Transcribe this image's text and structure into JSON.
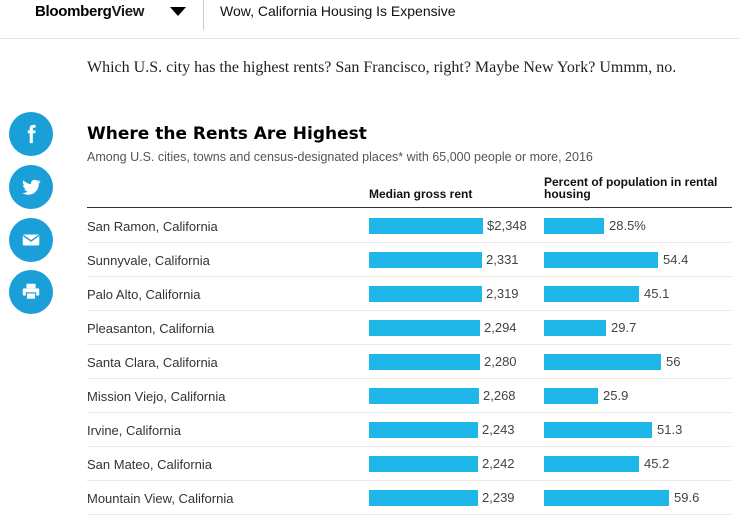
{
  "header": {
    "brand_bloomberg": "Bloomberg",
    "brand_view": "View",
    "headline": "Wow, California Housing Is Expensive"
  },
  "intro": "Which U.S. city has the highest rents? San Francisco, right? Maybe New York? Ummm, no.",
  "share_icons": [
    "facebook-icon",
    "twitter-icon",
    "email-icon",
    "print-icon"
  ],
  "colors": {
    "accent": "#1a9fd9",
    "bar": "#1eb7e8"
  },
  "chart_data": {
    "type": "table",
    "title": "Where the Rents Are Highest",
    "subtitle": "Among U.S. cities, towns and census-designated places* with 65,000 people or more, 2016",
    "columns": [
      "Median gross rent",
      "Percent of population in rental housing"
    ],
    "rows": [
      {
        "city": "San Ramon, California",
        "rent": 2348,
        "rent_label": "$2,348",
        "pct": 28.5,
        "pct_label": "28.5%"
      },
      {
        "city": "Sunnyvale, California",
        "rent": 2331,
        "rent_label": "2,331",
        "pct": 54.4,
        "pct_label": "54.4"
      },
      {
        "city": "Palo Alto, California",
        "rent": 2319,
        "rent_label": "2,319",
        "pct": 45.1,
        "pct_label": "45.1"
      },
      {
        "city": "Pleasanton, California",
        "rent": 2294,
        "rent_label": "2,294",
        "pct": 29.7,
        "pct_label": "29.7"
      },
      {
        "city": "Santa Clara, California",
        "rent": 2280,
        "rent_label": "2,280",
        "pct": 56,
        "pct_label": "56"
      },
      {
        "city": "Mission Viejo, California",
        "rent": 2268,
        "rent_label": "2,268",
        "pct": 25.9,
        "pct_label": "25.9"
      },
      {
        "city": "Irvine, California",
        "rent": 2243,
        "rent_label": "2,243",
        "pct": 51.3,
        "pct_label": "51.3"
      },
      {
        "city": "San Mateo, California",
        "rent": 2242,
        "rent_label": "2,242",
        "pct": 45.2,
        "pct_label": "45.2"
      },
      {
        "city": "Mountain View, California",
        "rent": 2239,
        "rent_label": "2,239",
        "pct": 59.6,
        "pct_label": "59.6"
      }
    ]
  }
}
